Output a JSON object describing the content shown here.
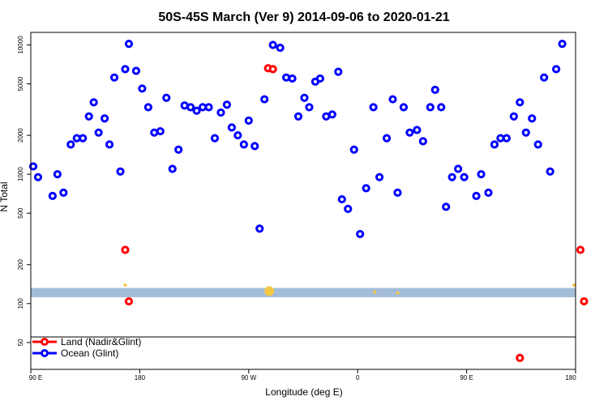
{
  "chart_data": {
    "type": "scatter",
    "title": "50S-45S March (Ver 9)   2014-09-06 to 2020-01-21",
    "xlabel": "Longitude (deg E)",
    "ylabel": "N Total",
    "x_ticks": [
      {
        "value": 90,
        "label": "90 E"
      },
      {
        "value": 180,
        "label": "180"
      },
      {
        "value": 270,
        "label": "90 W"
      },
      {
        "value": 360,
        "label": "0"
      },
      {
        "value": 450,
        "label": "90 E"
      },
      {
        "value": 540,
        "label": "180"
      }
    ],
    "y_ticks": [
      50,
      100,
      200,
      500,
      1000,
      2000,
      5000,
      10000
    ],
    "xlim": [
      90,
      540
    ],
    "ylim": [
      31,
      12500
    ],
    "y_scale": "log",
    "grid": false,
    "legend": {
      "placement": "bottom-left",
      "entries": [
        {
          "label": "Land (Nadir&Glint)",
          "color": "#ff0000"
        },
        {
          "label": "Ocean (Glint)",
          "color": "#0000ff"
        }
      ]
    },
    "colors": {
      "land": "#ff0000",
      "ocean": "#0000ff",
      "band": "#a3bcd9",
      "band_marker": "#f5c842"
    },
    "band": {
      "y_range": [
        112,
        132
      ]
    },
    "band_markers": [
      {
        "x": 168,
        "y": 139
      },
      {
        "x": 287,
        "y": 125,
        "size": "large"
      },
      {
        "x": 374,
        "y": 123
      },
      {
        "x": 393,
        "y": 121
      },
      {
        "x": 545,
        "y": 139
      }
    ],
    "series": [
      {
        "name": "Land (Nadir&Glint)",
        "color": "#ff0000",
        "points": [
          [
            168,
            260
          ],
          [
            171,
            104
          ],
          [
            286,
            6600
          ],
          [
            290,
            6500
          ],
          [
            494,
            38
          ],
          [
            544,
            260
          ],
          [
            547,
            104
          ]
        ]
      },
      {
        "name": "Ocean (Glint)",
        "color": "#0000ff",
        "points": [
          [
            92,
            1150
          ],
          [
            96,
            950
          ],
          [
            108,
            680
          ],
          [
            112,
            1000
          ],
          [
            117,
            720
          ],
          [
            123,
            1700
          ],
          [
            128,
            1900
          ],
          [
            133,
            1900
          ],
          [
            138,
            2800
          ],
          [
            142,
            3600
          ],
          [
            146,
            2100
          ],
          [
            151,
            2700
          ],
          [
            155,
            1700
          ],
          [
            159,
            5600
          ],
          [
            164,
            1050
          ],
          [
            168,
            6500
          ],
          [
            171,
            10200
          ],
          [
            177,
            6300
          ],
          [
            182,
            4600
          ],
          [
            187,
            3300
          ],
          [
            192,
            2100
          ],
          [
            197,
            2150
          ],
          [
            202,
            3900
          ],
          [
            207,
            1100
          ],
          [
            212,
            1550
          ],
          [
            217,
            3400
          ],
          [
            222,
            3300
          ],
          [
            227,
            3100
          ],
          [
            232,
            3300
          ],
          [
            237,
            3300
          ],
          [
            242,
            1900
          ],
          [
            247,
            3000
          ],
          [
            252,
            3450
          ],
          [
            256,
            2300
          ],
          [
            261,
            2000
          ],
          [
            266,
            1700
          ],
          [
            270,
            2600
          ],
          [
            275,
            1650
          ],
          [
            279,
            380
          ],
          [
            283,
            3800
          ],
          [
            290,
            10000
          ],
          [
            296,
            9500
          ],
          [
            301,
            5600
          ],
          [
            306,
            5500
          ],
          [
            311,
            2800
          ],
          [
            316,
            3900
          ],
          [
            320,
            3300
          ],
          [
            325,
            5200
          ],
          [
            329,
            5500
          ],
          [
            334,
            2800
          ],
          [
            339,
            2900
          ],
          [
            344,
            6200
          ],
          [
            347,
            640
          ],
          [
            352,
            540
          ],
          [
            357,
            1550
          ],
          [
            362,
            345
          ],
          [
            367,
            780
          ],
          [
            373,
            3300
          ],
          [
            378,
            950
          ],
          [
            384,
            1900
          ],
          [
            389,
            3800
          ],
          [
            393,
            720
          ],
          [
            398,
            3300
          ],
          [
            403,
            2100
          ],
          [
            409,
            2200
          ],
          [
            414,
            1800
          ],
          [
            420,
            3300
          ],
          [
            424,
            4500
          ],
          [
            429,
            3300
          ],
          [
            433,
            560
          ],
          [
            438,
            950
          ],
          [
            443,
            1100
          ],
          [
            448,
            950
          ],
          [
            458,
            680
          ],
          [
            462,
            1000
          ],
          [
            468,
            720
          ],
          [
            473,
            1700
          ],
          [
            478,
            1900
          ],
          [
            483,
            1900
          ],
          [
            489,
            2800
          ],
          [
            494,
            3600
          ],
          [
            499,
            2100
          ],
          [
            504,
            2700
          ],
          [
            509,
            1700
          ],
          [
            514,
            5600
          ],
          [
            519,
            1050
          ],
          [
            524,
            6500
          ],
          [
            529,
            10200
          ]
        ]
      }
    ]
  }
}
